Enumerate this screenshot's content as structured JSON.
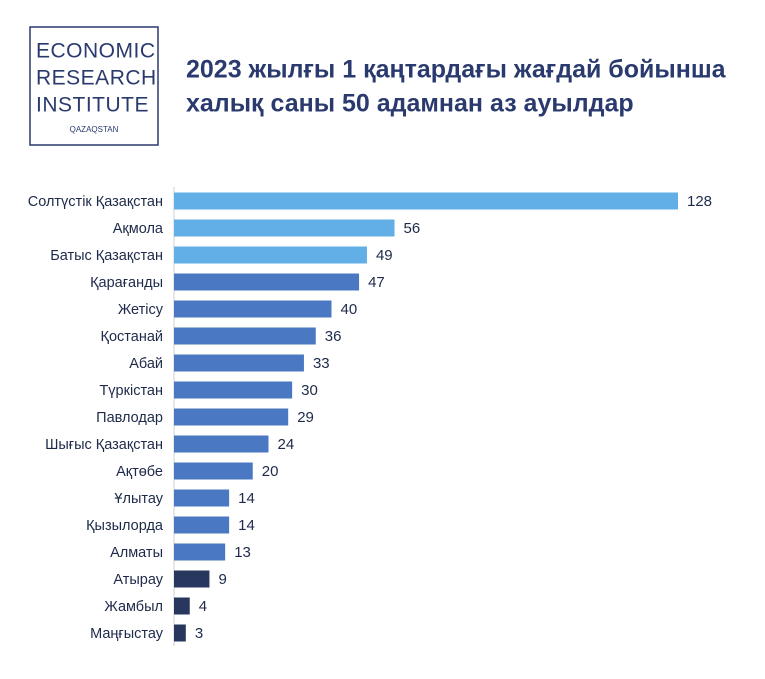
{
  "logo": {
    "lines": [
      "ECONOMIC",
      "RESEARCH",
      "INSTITUTE"
    ],
    "country": "QAZAQSTAN"
  },
  "chart_data": {
    "type": "barh",
    "title": [
      "2023 жылғы 1 қаңтардағы жағдай бойынша",
      "халық саны 50 адамнан аз ауылдар"
    ],
    "categories": [
      "Солтүстік Қазақстан",
      "Ақмола",
      "Батыс Қазақстан",
      "Қарағанды",
      "Жетісу",
      "Қостанай",
      "Абай",
      "Түркістан",
      "Павлодар",
      "Шығыс Қазақстан",
      "Ақтөбе",
      "Ұлытау",
      "Қызылорда",
      "Алматы",
      "Атырау",
      "Жамбыл",
      "Маңғыстау"
    ],
    "values": [
      128,
      56,
      49,
      47,
      40,
      36,
      33,
      30,
      29,
      24,
      20,
      14,
      14,
      13,
      9,
      4,
      3
    ],
    "colors": [
      "#62aee6",
      "#62aee6",
      "#62aee6",
      "#4a78c2",
      "#4a78c2",
      "#4a78c2",
      "#4a78c2",
      "#4a78c2",
      "#4a78c2",
      "#4a78c2",
      "#4a78c2",
      "#4a78c2",
      "#4a78c2",
      "#4a78c2",
      "#27375e",
      "#27375e",
      "#27375e"
    ]
  }
}
